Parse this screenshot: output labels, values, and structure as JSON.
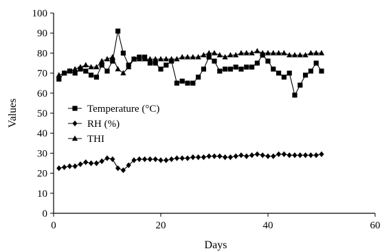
{
  "chart_data": {
    "type": "line",
    "xlabel": "Days",
    "ylabel": "Values",
    "xlim": [
      0,
      60
    ],
    "ylim": [
      0,
      100
    ],
    "xticks": [
      0,
      20,
      40,
      60
    ],
    "yticks": [
      0,
      10,
      20,
      30,
      40,
      50,
      60,
      70,
      80,
      90,
      100
    ],
    "grid": false,
    "legend_position": "center-left",
    "x": [
      1,
      2,
      3,
      4,
      5,
      6,
      7,
      8,
      9,
      10,
      11,
      12,
      13,
      14,
      15,
      16,
      17,
      18,
      19,
      20,
      21,
      22,
      23,
      24,
      25,
      26,
      27,
      28,
      29,
      30,
      31,
      32,
      33,
      34,
      35,
      36,
      37,
      38,
      39,
      40,
      41,
      42,
      43,
      44,
      45,
      46,
      47,
      48,
      49,
      50
    ],
    "series": [
      {
        "name": "Temperature (°C)",
        "marker": "square",
        "values": [
          67,
          70,
          71,
          70,
          72,
          71,
          69,
          68,
          74,
          71,
          76,
          91,
          80,
          74,
          77,
          78,
          78,
          75,
          75,
          72,
          74,
          76,
          65,
          66,
          65,
          65,
          68,
          72,
          78,
          76,
          71,
          72,
          72,
          73,
          72,
          73,
          73,
          75,
          79,
          76,
          72,
          70,
          68,
          70,
          59,
          64,
          69,
          71,
          75,
          71
        ]
      },
      {
        "name": "RH (%)",
        "marker": "diamond",
        "values": [
          22.5,
          23,
          23.5,
          23.5,
          24.5,
          25.5,
          25,
          25,
          26,
          27.5,
          27,
          22.5,
          21.5,
          24,
          26.5,
          27,
          27,
          27,
          27,
          26.5,
          26.5,
          27,
          27.5,
          27.5,
          27.5,
          28,
          28,
          28,
          28.5,
          28.5,
          28.5,
          28,
          28,
          28.5,
          29,
          28.5,
          29,
          29.5,
          29,
          28.5,
          28.5,
          29.5,
          29.5,
          29,
          29,
          29,
          29,
          29,
          29,
          29.5
        ]
      },
      {
        "name": "THI",
        "marker": "triangle",
        "values": [
          69,
          70,
          71,
          72,
          73,
          74,
          73,
          73,
          76,
          77,
          78,
          72,
          70,
          73,
          77,
          77,
          77,
          77,
          77,
          77,
          77,
          77,
          77,
          78,
          78,
          78,
          78,
          79,
          80,
          80,
          79,
          78,
          79,
          79,
          80,
          80,
          80,
          81,
          80,
          80,
          80,
          80,
          80,
          79,
          79,
          79,
          79,
          80,
          80,
          80
        ]
      }
    ]
  }
}
